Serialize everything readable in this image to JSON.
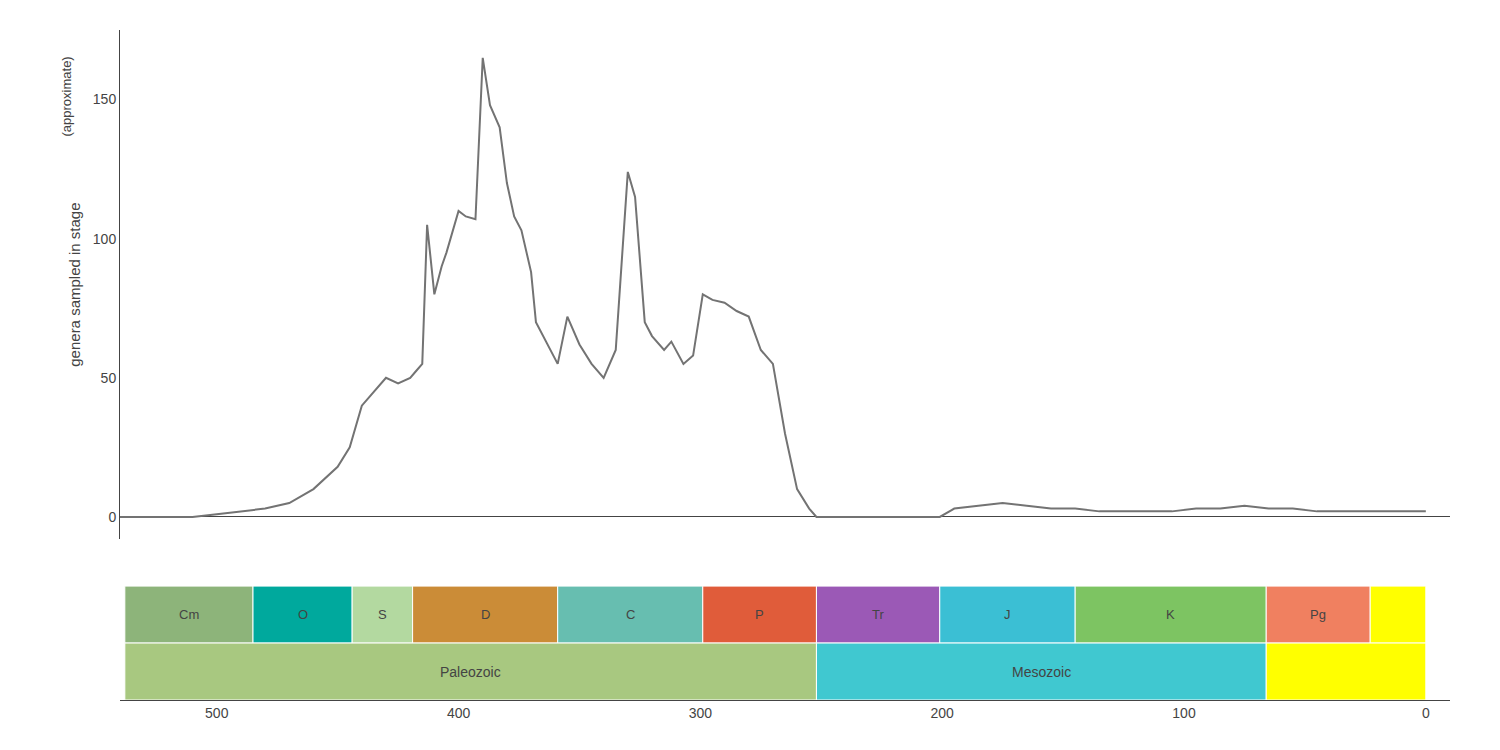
{
  "chart_data": {
    "type": "line",
    "ylabel": "genera sampled in stage",
    "annotations": [
      "(approximate)"
    ],
    "x": [
      540,
      530,
      520,
      510,
      500,
      490,
      480,
      470,
      460,
      450,
      445,
      440,
      435,
      430,
      425,
      420,
      418,
      415,
      413,
      410,
      407,
      405,
      400,
      397,
      393,
      390,
      387,
      383,
      380,
      377,
      374,
      372,
      370,
      368,
      365,
      362,
      359,
      355,
      350,
      345,
      340,
      335,
      330,
      327,
      323,
      320,
      315,
      312,
      307,
      303,
      299,
      295,
      290,
      285,
      280,
      275,
      270,
      265,
      260,
      255,
      252,
      248,
      245,
      240,
      235,
      230,
      220,
      210,
      205,
      201,
      195,
      185,
      175,
      165,
      155,
      145,
      135,
      125,
      115,
      105,
      95,
      85,
      75,
      65,
      55,
      45,
      35,
      25,
      15,
      5,
      0
    ],
    "values": [
      0,
      0,
      0,
      0,
      1,
      2,
      3,
      5,
      10,
      18,
      25,
      40,
      45,
      50,
      48,
      50,
      52,
      55,
      105,
      80,
      90,
      95,
      110,
      108,
      107,
      165,
      148,
      140,
      120,
      108,
      103,
      95,
      88,
      70,
      65,
      60,
      55,
      72,
      62,
      55,
      50,
      60,
      124,
      115,
      70,
      65,
      60,
      63,
      55,
      58,
      80,
      78,
      77,
      74,
      72,
      60,
      55,
      30,
      10,
      3,
      0,
      0,
      0,
      0,
      0,
      0,
      0,
      0,
      0,
      0,
      3,
      4,
      5,
      4,
      3,
      3,
      2,
      2,
      2,
      2,
      3,
      3,
      4,
      3,
      3,
      2,
      2,
      2,
      2,
      2,
      2
    ],
    "color": "#737373",
    "xlim": [
      540,
      -10
    ],
    "xticks": [
      500,
      400,
      300,
      200,
      100,
      0
    ],
    "ylim": [
      -8,
      175
    ],
    "yticks": [
      0,
      50,
      100,
      150
    ],
    "grid": false,
    "periods": [
      {
        "name": "Cm",
        "start": 538,
        "end": 485,
        "color": "#8db47a"
      },
      {
        "name": "O",
        "start": 485,
        "end": 444,
        "color": "#00a99d"
      },
      {
        "name": "S",
        "start": 444,
        "end": 419,
        "color": "#b3d9a0"
      },
      {
        "name": "D",
        "start": 419,
        "end": 359,
        "color": "#cb8c37"
      },
      {
        "name": "C",
        "start": 359,
        "end": 299,
        "color": "#67beb0"
      },
      {
        "name": "P",
        "start": 299,
        "end": 252,
        "color": "#e05c3a"
      },
      {
        "name": "Tr",
        "start": 252,
        "end": 201,
        "color": "#9b59b6"
      },
      {
        "name": "J",
        "start": 201,
        "end": 145,
        "color": "#3bbfd4"
      },
      {
        "name": "K",
        "start": 145,
        "end": 66,
        "color": "#7dc462"
      },
      {
        "name": "Pg",
        "start": 66,
        "end": 23,
        "color": "#f08060"
      },
      {
        "name": null,
        "start": 23,
        "end": 0,
        "color": "#ffff00"
      }
    ],
    "eras": [
      {
        "name": "Paleozoic",
        "start": 538,
        "end": 252,
        "color": "#a8c880"
      },
      {
        "name": "Mesozoic",
        "start": 252,
        "end": 66,
        "color": "#40c8d0"
      },
      {
        "name": null,
        "start": 66,
        "end": 0,
        "color": "#ffff00"
      }
    ]
  }
}
